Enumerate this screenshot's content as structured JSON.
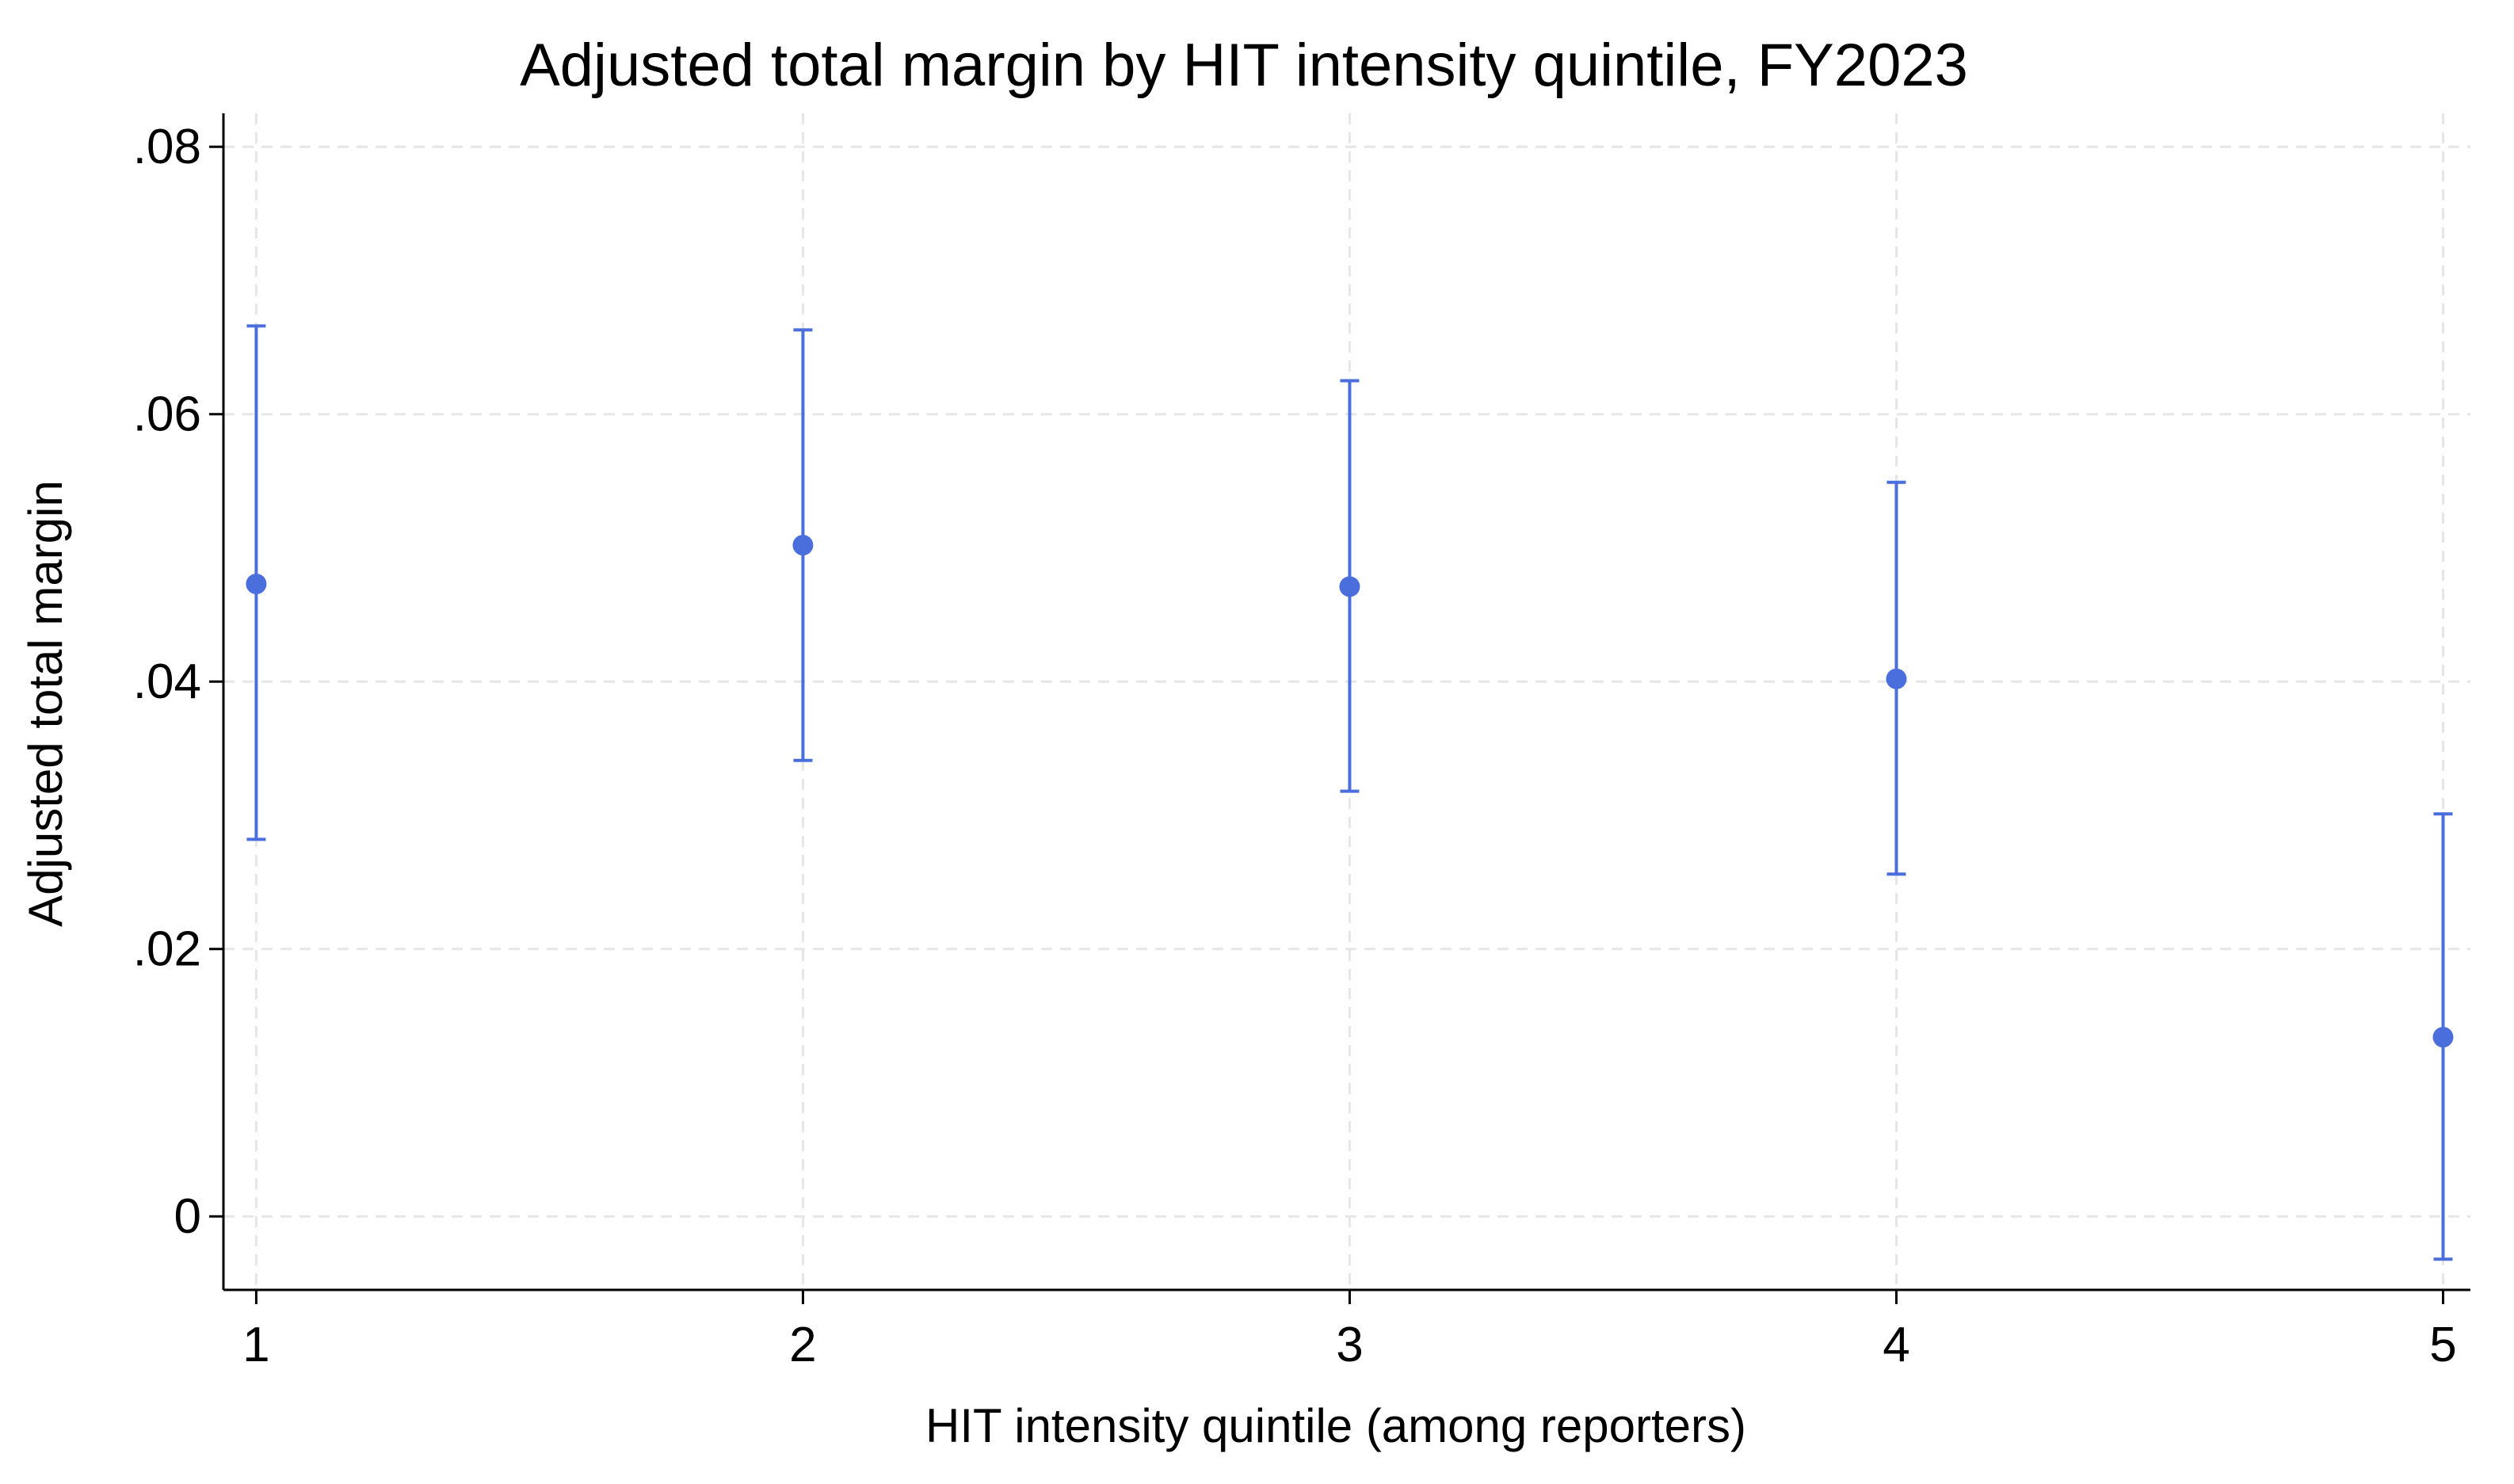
{
  "chart_data": {
    "type": "scatter",
    "title": "Adjusted total margin by HIT intensity quintile, FY2023",
    "xlabel": "HIT intensity quintile (among reporters)",
    "ylabel": "Adjusted total margin",
    "xlim": [
      0.94,
      5.05
    ],
    "ylim": [
      -0.0055,
      0.0825
    ],
    "x_ticks": [
      1,
      2,
      3,
      4,
      5
    ],
    "x_tick_labels": [
      "1",
      "2",
      "3",
      "4",
      "5"
    ],
    "y_ticks": [
      0,
      0.02,
      0.04,
      0.06,
      0.08
    ],
    "y_tick_labels": [
      "0",
      ".02",
      ".04",
      ".06",
      ".08"
    ],
    "grid": true,
    "legend": "none",
    "color": "#4a6fdc",
    "points": [
      {
        "x": 1,
        "y": 0.0473,
        "lower": 0.0282,
        "upper": 0.0666
      },
      {
        "x": 2,
        "y": 0.0502,
        "lower": 0.0341,
        "upper": 0.0663
      },
      {
        "x": 3,
        "y": 0.0471,
        "lower": 0.0318,
        "upper": 0.0625
      },
      {
        "x": 4,
        "y": 0.0402,
        "lower": 0.0256,
        "upper": 0.0549
      },
      {
        "x": 5,
        "y": 0.0134,
        "lower": -0.0032,
        "upper": 0.0301
      }
    ]
  }
}
